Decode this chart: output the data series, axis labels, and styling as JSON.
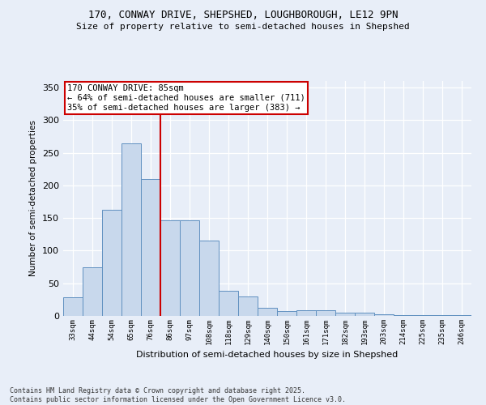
{
  "title_line1": "170, CONWAY DRIVE, SHEPSHED, LOUGHBOROUGH, LE12 9PN",
  "title_line2": "Size of property relative to semi-detached houses in Shepshed",
  "xlabel": "Distribution of semi-detached houses by size in Shepshed",
  "ylabel": "Number of semi-detached properties",
  "categories": [
    "33sqm",
    "44sqm",
    "54sqm",
    "65sqm",
    "76sqm",
    "86sqm",
    "97sqm",
    "108sqm",
    "118sqm",
    "129sqm",
    "140sqm",
    "150sqm",
    "161sqm",
    "171sqm",
    "182sqm",
    "193sqm",
    "203sqm",
    "214sqm",
    "225sqm",
    "235sqm",
    "246sqm"
  ],
  "values": [
    29,
    75,
    163,
    265,
    210,
    146,
    146,
    116,
    38,
    30,
    13,
    8,
    9,
    9,
    5,
    5,
    2,
    1,
    1,
    1,
    1
  ],
  "bar_color": "#c8d8ec",
  "bar_edge_color": "#6090c0",
  "vline_color": "#cc0000",
  "vline_bin": 4,
  "annotation_text": "170 CONWAY DRIVE: 85sqm\n← 64% of semi-detached houses are smaller (711)\n35% of semi-detached houses are larger (383) →",
  "annotation_box_color": "#ffffff",
  "annotation_box_edge_color": "#cc0000",
  "footer_text": "Contains HM Land Registry data © Crown copyright and database right 2025.\nContains public sector information licensed under the Open Government Licence v3.0.",
  "background_color": "#e8eef8",
  "plot_bg_color": "#e8eef8",
  "ylim": [
    0,
    360
  ],
  "yticks": [
    0,
    50,
    100,
    150,
    200,
    250,
    300,
    350
  ]
}
